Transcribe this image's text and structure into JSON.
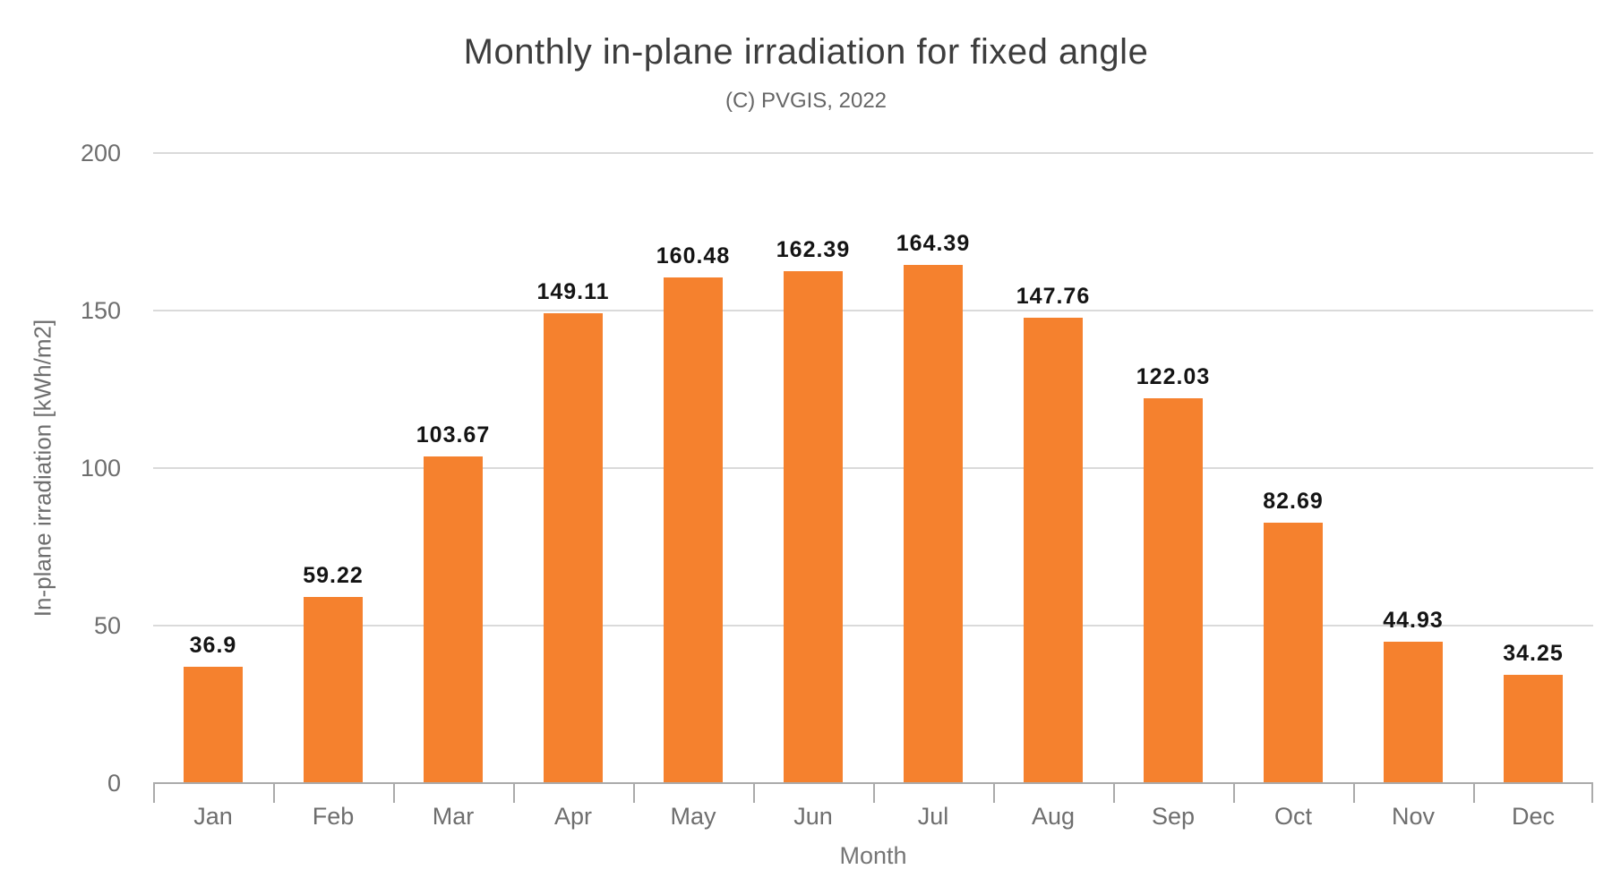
{
  "chart_data": {
    "type": "bar",
    "title": "Monthly in-plane irradiation for fixed angle",
    "subtitle": "(C) PVGIS, 2022",
    "xlabel": "Month",
    "ylabel": "In-plane irradiation [kWh/m2]",
    "categories": [
      "Jan",
      "Feb",
      "Mar",
      "Apr",
      "May",
      "Jun",
      "Jul",
      "Aug",
      "Sep",
      "Oct",
      "Nov",
      "Dec"
    ],
    "values": [
      36.9,
      59.22,
      103.67,
      149.11,
      160.48,
      162.39,
      164.39,
      147.76,
      122.03,
      82.69,
      44.93,
      34.25
    ],
    "ylim": [
      0,
      200
    ],
    "yticks": [
      0,
      50,
      100,
      150,
      200
    ],
    "grid": true,
    "legend": "none",
    "colors": {
      "bar": "#F5812E",
      "gridline": "#DADADA",
      "axis_line": "#ABABAB",
      "title_text": "#3D3D3D",
      "subtitle_text": "#666666",
      "axis_text": "#6E6E6E",
      "value_label_text": "#141414",
      "background": "#FFFFFF"
    }
  }
}
